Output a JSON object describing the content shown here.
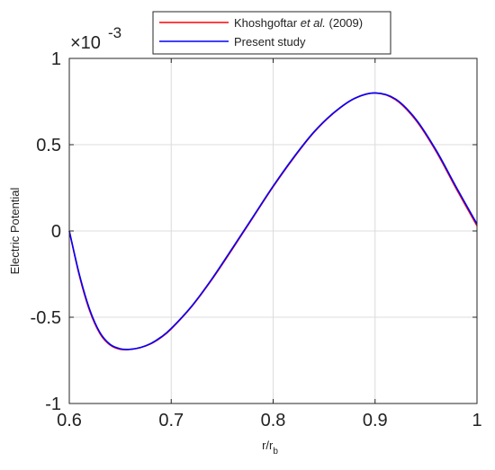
{
  "chart_data": {
    "type": "line",
    "title": "",
    "xlabel_main": "r/r",
    "xlabel_sub": "b",
    "ylabel": "Electric Potential",
    "y_multiplier": {
      "base": "×10",
      "exponent": "-3"
    },
    "xlim": [
      0.6,
      1.0
    ],
    "ylim": [
      -1,
      1
    ],
    "x_ticks": [
      0.6,
      0.7,
      0.8,
      0.9,
      1.0
    ],
    "x_tick_labels": [
      "0.6",
      "0.7",
      "0.8",
      "0.9",
      "1"
    ],
    "y_ticks": [
      -1,
      -0.5,
      0,
      0.5,
      1
    ],
    "y_tick_labels": [
      "-1",
      "-0.5",
      "0",
      "0.5",
      "1"
    ],
    "grid": true,
    "legend_position": "top-center",
    "series": [
      {
        "name_parts": [
          "Khoshgoftar ",
          "et al.",
          " (2009)"
        ],
        "color": "#ff0000",
        "x": [
          0.6,
          0.61,
          0.62,
          0.63,
          0.64,
          0.65,
          0.66,
          0.67,
          0.68,
          0.69,
          0.7,
          0.72,
          0.74,
          0.76,
          0.78,
          0.8,
          0.82,
          0.84,
          0.86,
          0.88,
          0.9,
          0.92,
          0.94,
          0.96,
          0.98,
          1.0
        ],
        "y": [
          0.0,
          -0.262,
          -0.463,
          -0.594,
          -0.661,
          -0.686,
          -0.686,
          -0.676,
          -0.654,
          -0.618,
          -0.568,
          -0.439,
          -0.281,
          -0.105,
          0.076,
          0.256,
          0.422,
          0.571,
          0.686,
          0.768,
          0.8,
          0.761,
          0.642,
          0.46,
          0.241,
          0.03
        ]
      },
      {
        "name_parts": [
          "Present study"
        ],
        "color": "#0000ff",
        "x": [
          0.6,
          0.61,
          0.62,
          0.63,
          0.64,
          0.65,
          0.66,
          0.67,
          0.68,
          0.69,
          0.7,
          0.72,
          0.74,
          0.76,
          0.78,
          0.8,
          0.82,
          0.84,
          0.86,
          0.88,
          0.9,
          0.92,
          0.94,
          0.96,
          0.98,
          1.0
        ],
        "y": [
          0.0,
          -0.255,
          -0.455,
          -0.588,
          -0.657,
          -0.683,
          -0.686,
          -0.675,
          -0.652,
          -0.615,
          -0.565,
          -0.436,
          -0.277,
          -0.1,
          0.08,
          0.26,
          0.426,
          0.574,
          0.688,
          0.769,
          0.8,
          0.765,
          0.648,
          0.467,
          0.25,
          0.04
        ]
      }
    ]
  }
}
